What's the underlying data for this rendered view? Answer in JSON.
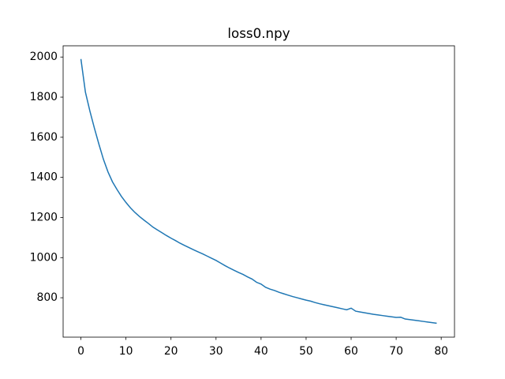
{
  "chart_data": {
    "type": "line",
    "title": "loss0.npy",
    "x": [
      0,
      1,
      2,
      3,
      4,
      5,
      6,
      7,
      8,
      9,
      10,
      11,
      12,
      13,
      14,
      15,
      16,
      17,
      18,
      19,
      20,
      21,
      22,
      23,
      24,
      25,
      26,
      27,
      28,
      29,
      30,
      31,
      32,
      33,
      34,
      35,
      36,
      37,
      38,
      39,
      40,
      41,
      42,
      43,
      44,
      45,
      46,
      47,
      48,
      49,
      50,
      51,
      52,
      53,
      54,
      55,
      56,
      57,
      58,
      59,
      60,
      61,
      62,
      63,
      64,
      65,
      66,
      67,
      68,
      69,
      70,
      71,
      72,
      73,
      74,
      75,
      76,
      77,
      78,
      79
    ],
    "series": [
      {
        "color": "#1f77b4",
        "values": [
          1990,
          1825,
          1730,
          1645,
          1565,
          1490,
          1428,
          1378,
          1340,
          1305,
          1275,
          1248,
          1225,
          1205,
          1187,
          1170,
          1152,
          1138,
          1124,
          1110,
          1097,
          1085,
          1072,
          1061,
          1050,
          1039,
          1029,
          1019,
          1008,
          997,
          986,
          973,
          960,
          948,
          937,
          926,
          916,
          904,
          893,
          877,
          868,
          852,
          843,
          836,
          827,
          820,
          813,
          806,
          800,
          794,
          788,
          783,
          776,
          770,
          765,
          760,
          755,
          750,
          745,
          740,
          748,
          733,
          729,
          725,
          721,
          717,
          714,
          711,
          708,
          705,
          702,
          703,
          694,
          691,
          688,
          685,
          682,
          679,
          676,
          673
        ]
      }
    ],
    "xlim": [
      -3.95,
      82.95
    ],
    "xticks": [
      0,
      10,
      20,
      30,
      40,
      50,
      60,
      70,
      80
    ],
    "ylim": [
      603.5,
      2056
    ],
    "yticks": [
      800,
      1000,
      1200,
      1400,
      1600,
      1800,
      2000
    ]
  }
}
